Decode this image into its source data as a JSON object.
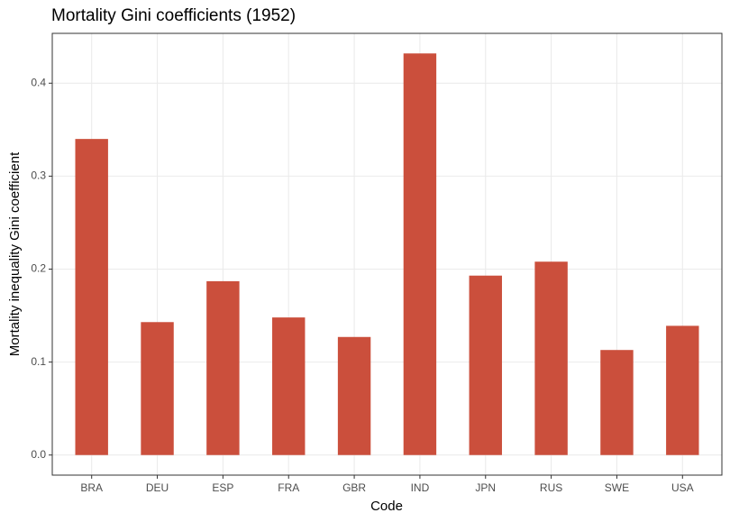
{
  "chart_data": {
    "type": "bar",
    "title": "Mortality Gini coefficients (1952)",
    "x_label": "Code",
    "y_label": "Mortality inequality Gini coefficient",
    "categories": [
      "BRA",
      "DEU",
      "ESP",
      "FRA",
      "GBR",
      "IND",
      "JPN",
      "RUS",
      "SWE",
      "USA"
    ],
    "values": [
      0.34,
      0.143,
      0.187,
      0.148,
      0.127,
      0.432,
      0.193,
      0.208,
      0.113,
      0.139
    ],
    "color": "#cb4f3c",
    "ylim": [
      -0.0216,
      0.4536
    ],
    "yticks": [
      {
        "value": 0,
        "label": "0.0"
      },
      0.1,
      0.2,
      0.3,
      0.4
    ],
    "grid": true
  }
}
